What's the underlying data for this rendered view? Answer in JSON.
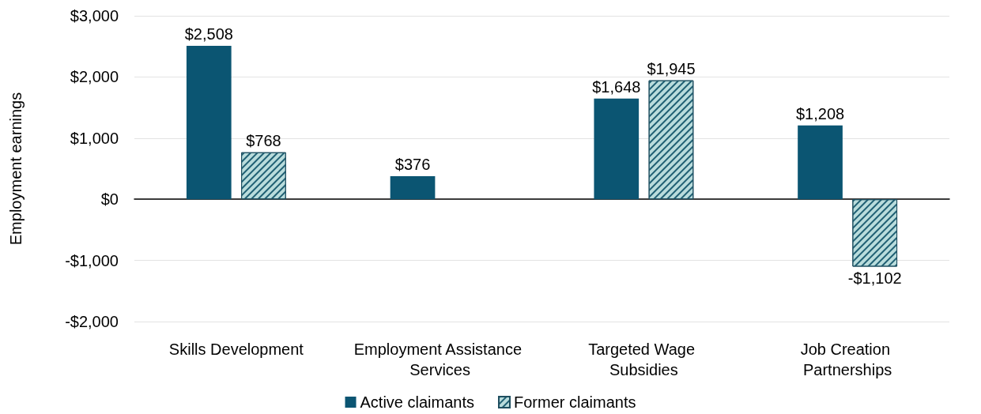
{
  "chart_data": {
    "type": "bar",
    "ylabel": "Employment earnings",
    "categories": [
      "Skills Development",
      "Employment Assistance Services",
      "Targeted Wage Subsidies",
      "Job Creation Partnerships"
    ],
    "series": [
      {
        "name": "Active claimants",
        "color": "#0b5572",
        "values": [
          2508,
          376,
          1648,
          1208
        ],
        "value_labels": [
          "$2,508",
          "$376",
          "$1,648",
          "$1,208"
        ]
      },
      {
        "name": "Former claimants",
        "color": "#b9dcdc",
        "values": [
          768,
          null,
          1945,
          -1102
        ],
        "value_labels": [
          "$768",
          null,
          "$1,945",
          "-$1,102"
        ]
      }
    ],
    "ylim": [
      -2000,
      3000
    ],
    "yticks": [
      {
        "value": -2000,
        "label": "-$2,000"
      },
      {
        "value": -1000,
        "label": "-$1,000"
      },
      {
        "value": 0,
        "label": "$0"
      },
      {
        "value": 1000,
        "label": "$1,000"
      },
      {
        "value": 2000,
        "label": "$2,000"
      },
      {
        "value": 3000,
        "label": "$3,000"
      }
    ],
    "grid": "y",
    "legend": "bottom"
  }
}
